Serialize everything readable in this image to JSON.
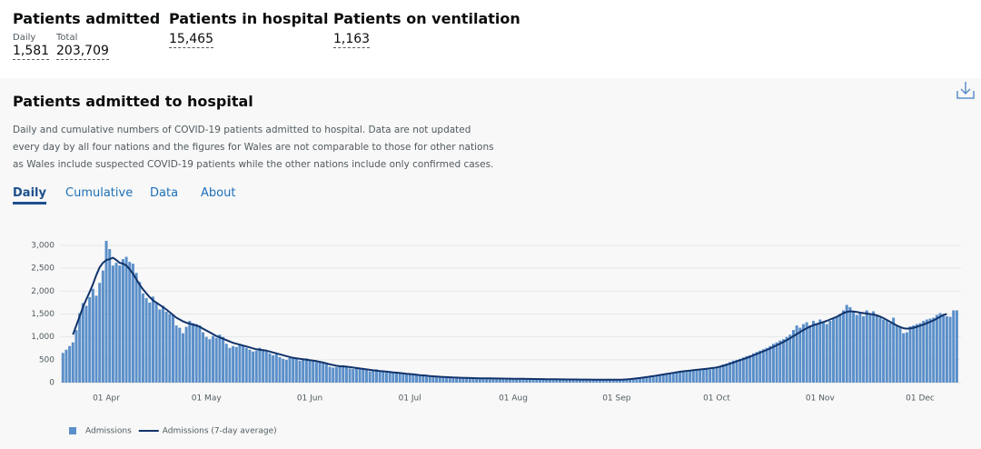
{
  "headline": [
    {
      "title": "Patients admitted",
      "metrics": [
        {
          "label": "Daily",
          "value": "1,581"
        },
        {
          "label": "Total",
          "value": "203,709"
        }
      ]
    },
    {
      "title": "Patients in hospital",
      "metrics": [
        {
          "value": "15,465"
        }
      ]
    },
    {
      "title": "Patients on ventilation",
      "metrics": [
        {
          "value": "1,163"
        }
      ]
    }
  ],
  "card": {
    "title": "Patients admitted to hospital",
    "description": "Daily and cumulative numbers of COVID-19 patients admitted to hospital. Data are not updated every day by all four nations and the figures for Wales are not comparable to those for other nations as Wales include suspected COVID-19 patients while the other nations include only confirmed cases.",
    "tabs": [
      "Daily",
      "Cumulative",
      "Data",
      "About"
    ]
  },
  "chart_data": {
    "type": "bar",
    "categories": [
      null,
      null,
      null,
      null,
      null,
      null,
      null,
      null,
      null,
      null,
      null,
      null,
      null,
      "01 Apr",
      null,
      null,
      null,
      null,
      null,
      null,
      null,
      null,
      null,
      null,
      null,
      null,
      null,
      null,
      null,
      null,
      null,
      null,
      null,
      null,
      null,
      null,
      null,
      null,
      null,
      null,
      null,
      null,
      null,
      "01 May",
      null,
      null,
      null,
      null,
      null,
      null,
      null,
      null,
      null,
      null,
      null,
      null,
      null,
      null,
      null,
      null,
      null,
      null,
      null,
      null,
      null,
      null,
      null,
      null,
      null,
      null,
      null,
      null,
      null,
      null,
      "01 Jun",
      null,
      null,
      null,
      null,
      null,
      null,
      null,
      null,
      null,
      null,
      null,
      null,
      null,
      null,
      null,
      null,
      null,
      null,
      null,
      null,
      null,
      null,
      null,
      null,
      null,
      null,
      null,
      null,
      null,
      "01 Jul",
      null,
      null,
      null,
      null,
      null,
      null,
      null,
      null,
      null,
      null,
      null,
      null,
      null,
      null,
      null,
      null,
      null,
      null,
      null,
      null,
      null,
      null,
      null,
      null,
      null,
      null,
      null,
      null,
      null,
      null,
      "01 Aug",
      null,
      null,
      null,
      null,
      null,
      null,
      null,
      null,
      null,
      null,
      null,
      null,
      null,
      null,
      null,
      null,
      null,
      null,
      null,
      null,
      null,
      null,
      null,
      null,
      null,
      null,
      null,
      null,
      null,
      null,
      "01 Sep",
      null,
      null,
      null,
      null,
      null,
      null,
      null,
      null,
      null,
      null,
      null,
      null,
      null,
      null,
      null,
      null,
      null,
      null,
      null,
      null,
      null,
      null,
      null,
      null,
      null,
      null,
      null,
      null,
      null,
      "01 Oct",
      null,
      null,
      null,
      null,
      null,
      null,
      null,
      null,
      null,
      null,
      null,
      null,
      null,
      null,
      null,
      null,
      null,
      null,
      null,
      null,
      null,
      null,
      null,
      null,
      null,
      null,
      null,
      null,
      null,
      null,
      "01 Nov",
      null,
      null,
      null,
      null,
      null,
      null,
      null,
      null,
      null,
      null,
      null,
      null,
      null,
      null,
      null,
      null,
      null,
      null,
      null,
      null,
      null,
      null,
      null,
      null,
      null,
      null,
      null,
      null,
      null,
      "01 Dec",
      null,
      null,
      null,
      null,
      null,
      null,
      null,
      null,
      null,
      null,
      null
    ],
    "series": [
      {
        "name": "Admissions",
        "color": "#5b8fc9",
        "values": [
          650,
          720,
          800,
          880,
          1150,
          1520,
          1740,
          1680,
          1870,
          2050,
          1900,
          2180,
          2450,
          3100,
          2920,
          2560,
          2620,
          2560,
          2700,
          2750,
          2640,
          2600,
          2400,
          2200,
          1950,
          1850,
          1750,
          1880,
          1760,
          1600,
          1680,
          1550,
          1500,
          1470,
          1250,
          1200,
          1080,
          1220,
          1350,
          1300,
          1280,
          1250,
          1100,
          1000,
          950,
          1020,
          980,
          1050,
          1000,
          850,
          760,
          800,
          780,
          850,
          820,
          760,
          720,
          680,
          700,
          760,
          720,
          680,
          640,
          600,
          620,
          560,
          520,
          500,
          540,
          560,
          520,
          480,
          500,
          530,
          500,
          470,
          450,
          460,
          420,
          400,
          350,
          330,
          340,
          360,
          380,
          350,
          310,
          300,
          330,
          320,
          290,
          280,
          250,
          270,
          290,
          260,
          240,
          220,
          230,
          240,
          210,
          200,
          190,
          200,
          180,
          170,
          160,
          165,
          150,
          145,
          140,
          150,
          135,
          130,
          125,
          130,
          120,
          115,
          110,
          118,
          112,
          105,
          100,
          108,
          102,
          98,
          95,
          100,
          96,
          92,
          90,
          95,
          92,
          88,
          90,
          88,
          85,
          90,
          86,
          82,
          84,
          80,
          82,
          78,
          80,
          76,
          78,
          74,
          76,
          72,
          74,
          70,
          72,
          70,
          68,
          70,
          68,
          66,
          68,
          66,
          64,
          66,
          64,
          62,
          64,
          62,
          65,
          70,
          75,
          80,
          90,
          100,
          110,
          120,
          130,
          140,
          150,
          160,
          170,
          180,
          190,
          200,
          210,
          220,
          230,
          240,
          250,
          240,
          260,
          270,
          280,
          290,
          300,
          310,
          290,
          320,
          340,
          360,
          400,
          420,
          450,
          480,
          500,
          520,
          550,
          580,
          600,
          640,
          670,
          700,
          730,
          760,
          800,
          850,
          880,
          920,
          950,
          1000,
          1050,
          1150,
          1250,
          1200,
          1280,
          1320,
          1250,
          1350,
          1300,
          1380,
          1320,
          1280,
          1350,
          1400,
          1430,
          1500,
          1580,
          1700,
          1650,
          1550,
          1480,
          1520,
          1450,
          1580,
          1500,
          1560,
          1480,
          1420,
          1380,
          1350,
          1300,
          1420,
          1250,
          1200,
          1080,
          1100,
          1230,
          1250,
          1280,
          1300,
          1350,
          1380,
          1400,
          1420,
          1480,
          1520,
          1500,
          1450,
          1440,
          1580,
          1581
        ]
      },
      {
        "name": "Admissions (7-day average)",
        "type": "line",
        "color": "#12336b",
        "values": [
          null,
          null,
          null,
          1050,
          1250,
          1450,
          1650,
          1820,
          1980,
          2150,
          2350,
          2520,
          2620,
          2680,
          2700,
          2730,
          2680,
          2620,
          2600,
          2560,
          2480,
          2380,
          2260,
          2140,
          2040,
          1950,
          1870,
          1800,
          1750,
          1700,
          1650,
          1600,
          1540,
          1480,
          1420,
          1380,
          1340,
          1310,
          1290,
          1270,
          1250,
          1220,
          1180,
          1140,
          1100,
          1060,
          1020,
          990,
          960,
          930,
          900,
          870,
          850,
          830,
          810,
          790,
          770,
          750,
          730,
          720,
          710,
          700,
          680,
          660,
          640,
          620,
          600,
          580,
          560,
          540,
          530,
          520,
          510,
          500,
          490,
          480,
          470,
          455,
          440,
          420,
          400,
          385,
          370,
          360,
          355,
          350,
          340,
          330,
          320,
          310,
          300,
          290,
          280,
          270,
          262,
          255,
          248,
          240,
          232,
          225,
          218,
          210,
          202,
          195,
          188,
          180,
          172,
          165,
          158,
          152,
          146,
          140,
          135,
          130,
          126,
          122,
          118,
          114,
          111,
          108,
          106,
          104,
          102,
          100,
          98,
          96,
          95,
          94,
          93,
          92,
          91,
          90,
          89,
          88,
          87,
          86,
          85,
          84,
          83,
          82,
          81,
          80,
          79,
          78,
          77,
          76,
          75,
          74,
          73,
          72,
          71,
          70,
          70,
          69,
          69,
          68,
          68,
          67,
          67,
          66,
          66,
          65,
          65,
          65,
          64,
          64,
          65,
          66,
          68,
          72,
          78,
          85,
          93,
          102,
          112,
          122,
          133,
          144,
          155,
          166,
          178,
          190,
          202,
          214,
          226,
          238,
          248,
          256,
          264,
          272,
          280,
          288,
          296,
          304,
          312,
          322,
          334,
          350,
          370,
          392,
          416,
          440,
          465,
          490,
          515,
          540,
          568,
          596,
          625,
          655,
          685,
          715,
          748,
          782,
          816,
          852,
          890,
          930,
          972,
          1015,
          1060,
          1105,
          1150,
          1190,
          1225,
          1255,
          1280,
          1300,
          1325,
          1350,
          1380,
          1410,
          1440,
          1480,
          1520,
          1545,
          1560,
          1555,
          1545,
          1530,
          1520,
          1510,
          1500,
          1490,
          1470,
          1445,
          1410,
          1370,
          1330,
          1290,
          1250,
          1215,
          1190,
          1180,
          1185,
          1200,
          1220,
          1245,
          1270,
          1300,
          1330,
          1360,
          1400,
          1440,
          1480,
          1500,
          null,
          null,
          null
        ]
      }
    ],
    "ylim": [
      0,
      3000
    ],
    "yticks": [
      0,
      500,
      {
        "value": 1000,
        "label": "1,000"
      },
      {
        "value": 1500,
        "label": "1,500"
      },
      {
        "value": 2000,
        "label": "2,000"
      },
      {
        "value": 2500,
        "label": "2,500"
      },
      {
        "value": 3000,
        "label": "3,000"
      }
    ],
    "grid": true,
    "legend": "bottom-left"
  }
}
